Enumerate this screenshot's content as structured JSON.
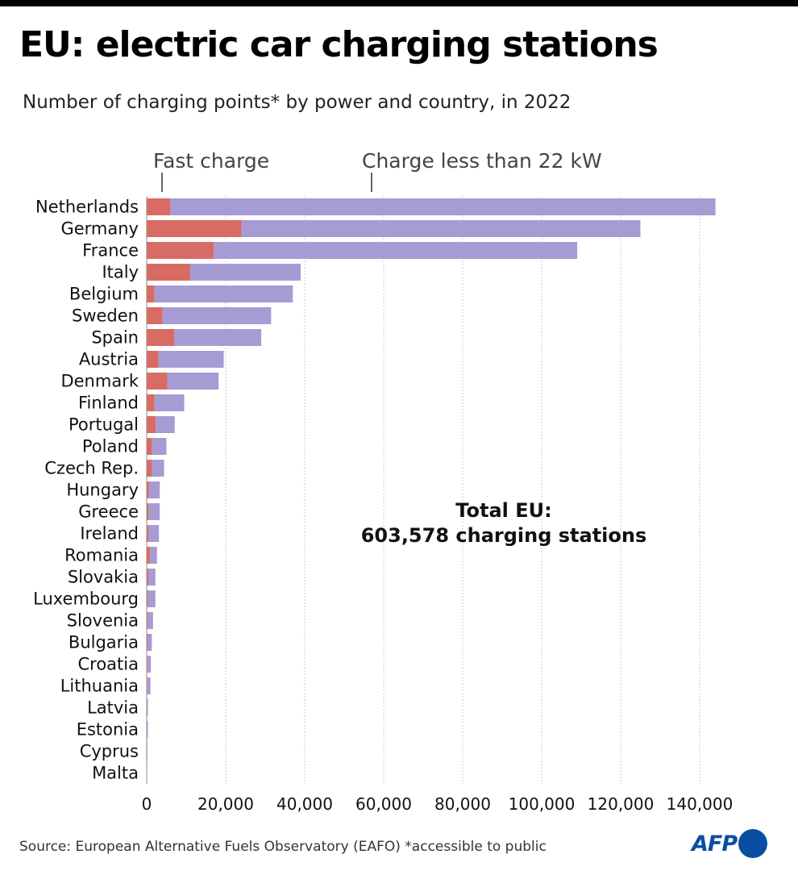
{
  "title": "EU: electric car charging stations",
  "subtitle": "Number of charging points* by power and country, in 2022",
  "source": "Source: European Alternative Fuels Observatory (EAFO) *accessible to public",
  "logo": {
    "text": "AFP",
    "color": "#0a4ea3"
  },
  "colors": {
    "fast": "#d86b64",
    "slow": "#a79bd4",
    "grid": "#cccccc",
    "axis": "#888888"
  },
  "chart_data": {
    "type": "bar",
    "orientation": "horizontal",
    "stacked": true,
    "categories": [
      "Netherlands",
      "Germany",
      "France",
      "Italy",
      "Belgium",
      "Sweden",
      "Spain",
      "Austria",
      "Denmark",
      "Finland",
      "Portugal",
      "Poland",
      "Czech Rep.",
      "Hungary",
      "Greece",
      "Ireland",
      "Romania",
      "Slovakia",
      "Luxembourg",
      "Slovenia",
      "Bulgaria",
      "Croatia",
      "Lithuania",
      "Latvia",
      "Estonia",
      "Cyprus",
      "Malta"
    ],
    "series": [
      {
        "name": "Fast charge",
        "color": "#d86b64",
        "values": [
          6000,
          24000,
          17000,
          11000,
          2000,
          4000,
          7000,
          3000,
          5200,
          2000,
          2300,
          1300,
          1300,
          500,
          400,
          400,
          800,
          400,
          200,
          200,
          200,
          150,
          150,
          50,
          50,
          20,
          10
        ]
      },
      {
        "name": "Charge less than 22 kW",
        "color": "#a79bd4",
        "values": [
          138000,
          101000,
          92000,
          28000,
          35000,
          27500,
          22000,
          16500,
          13000,
          7500,
          4800,
          3700,
          3100,
          2800,
          2900,
          2700,
          1800,
          1800,
          2000,
          1400,
          1100,
          900,
          800,
          250,
          250,
          150,
          60
        ]
      }
    ],
    "xlim": [
      0,
      145000
    ],
    "xticks": [
      0,
      20000,
      40000,
      60000,
      80000,
      100000,
      120000,
      140000
    ],
    "xtick_labels": [
      "0",
      "20,000",
      "40,000",
      "60,000",
      "80,000",
      "100,000",
      "120,000",
      "140,000"
    ],
    "grid": true,
    "legend_placement": "top",
    "annotation": [
      "Total EU:",
      "603,578 charging stations"
    ]
  }
}
